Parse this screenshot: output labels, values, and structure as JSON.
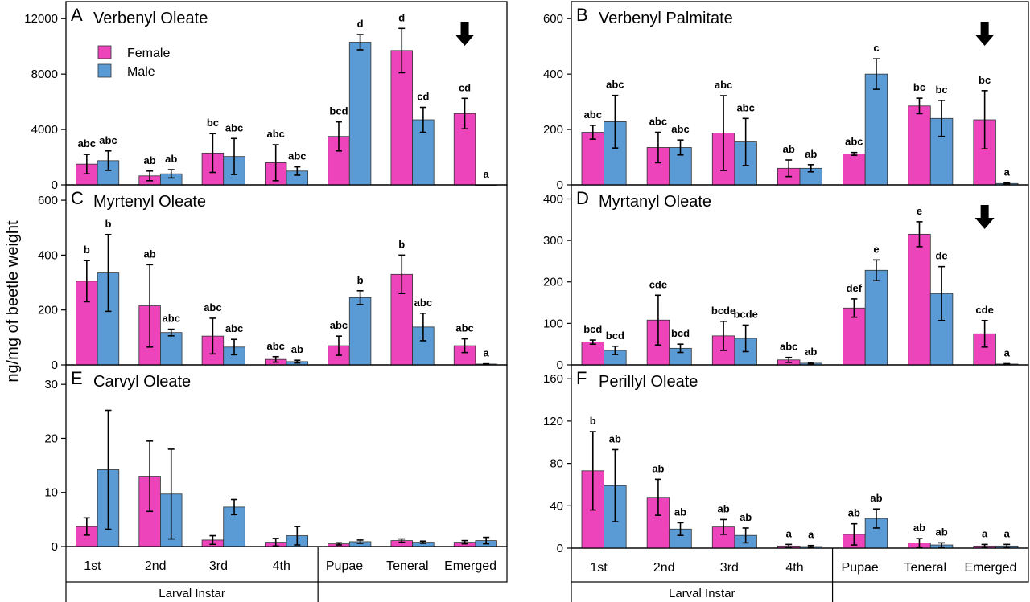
{
  "figure": {
    "ylabel": "ng/mg of beetle weight",
    "categories": [
      "1st",
      "2nd",
      "3rd",
      "4th",
      "Pupae",
      "Teneral",
      "Emerged"
    ],
    "group_label": "Larval Instar",
    "legend": {
      "female": "Female",
      "male": "Male"
    },
    "colors": {
      "female": "#ee44bb",
      "male": "#5b9bd5"
    }
  },
  "chart_data": [
    {
      "type": "bar",
      "letter": "A",
      "title": "Verbenyl Oleate",
      "ylim": [
        0,
        13000
      ],
      "yticks": [
        0,
        4000,
        8000,
        12000
      ],
      "ytick_labels": [
        "0",
        "4000",
        "8000",
        "12000"
      ],
      "categories": [
        "1st",
        "2nd",
        "3rd",
        "4th",
        "Pupae",
        "Teneral",
        "Emerged"
      ],
      "series": [
        {
          "name": "Female",
          "values": [
            1500,
            650,
            2300,
            1600,
            3500,
            9700,
            5150
          ],
          "errors": [
            700,
            350,
            1400,
            1300,
            1050,
            1600,
            1100
          ],
          "sig": [
            "abc",
            "ab",
            "bc",
            "abc",
            "bcd",
            "d",
            "cd"
          ]
        },
        {
          "name": "Male",
          "values": [
            1750,
            800,
            2050,
            1000,
            10300,
            4700,
            0
          ],
          "errors": [
            700,
            300,
            1300,
            300,
            550,
            900,
            0
          ],
          "sig": [
            "abc",
            "ab",
            "abc",
            "abc",
            "d",
            "cd",
            "a"
          ]
        }
      ],
      "arrow_category": "Emerged",
      "legend": "top-left"
    },
    {
      "type": "bar",
      "letter": "B",
      "title": "Verbenyl Palmitate",
      "ylim": [
        0,
        650
      ],
      "yticks": [
        0,
        200,
        400,
        600
      ],
      "ytick_labels": [
        "0",
        "200",
        "400",
        "600"
      ],
      "categories": [
        "1st",
        "2nd",
        "3rd",
        "4th",
        "Pupae",
        "Teneral",
        "Emerged"
      ],
      "series": [
        {
          "name": "Female",
          "values": [
            190,
            135,
            187,
            60,
            112,
            285,
            235
          ],
          "errors": [
            25,
            55,
            135,
            30,
            5,
            28,
            105
          ],
          "sig": [
            "abc",
            "abc",
            "abc",
            "ab",
            "abc",
            "bc",
            "bc"
          ]
        },
        {
          "name": "Male",
          "values": [
            228,
            135,
            155,
            60,
            400,
            240,
            5
          ],
          "errors": [
            95,
            27,
            85,
            13,
            55,
            65,
            2
          ],
          "sig": [
            "abc",
            "abc",
            "abc",
            "ab",
            "c",
            "bc",
            "a"
          ]
        }
      ],
      "arrow_category": "Emerged"
    },
    {
      "type": "bar",
      "letter": "C",
      "title": "Myrtenyl Oleate",
      "ylim": [
        0,
        650
      ],
      "yticks": [
        0,
        200,
        400,
        600
      ],
      "ytick_labels": [
        "0",
        "200",
        "400",
        "600"
      ],
      "categories": [
        "1st",
        "2nd",
        "3rd",
        "4th",
        "Pupae",
        "Teneral",
        "Emerged"
      ],
      "series": [
        {
          "name": "Female",
          "values": [
            305,
            215,
            105,
            20,
            70,
            330,
            70
          ],
          "errors": [
            75,
            150,
            65,
            10,
            35,
            70,
            25
          ],
          "sig": [
            "b",
            "ab",
            "abc",
            "abc",
            "abc",
            "b",
            "abc"
          ]
        },
        {
          "name": "Male",
          "values": [
            335,
            118,
            65,
            12,
            245,
            138,
            3
          ],
          "errors": [
            140,
            12,
            28,
            5,
            25,
            50,
            1
          ],
          "sig": [
            "b",
            "abc",
            "abc",
            "ab",
            "b",
            "abc",
            "a"
          ]
        }
      ]
    },
    {
      "type": "bar",
      "letter": "D",
      "title": "Myrtanyl Oleate",
      "ylim": [
        0,
        430
      ],
      "yticks": [
        0,
        100,
        200,
        300,
        400
      ],
      "ytick_labels": [
        "0",
        "100",
        "200",
        "300",
        "400"
      ],
      "categories": [
        "1st",
        "2nd",
        "3rd",
        "4th",
        "Pupae",
        "Teneral",
        "Emerged"
      ],
      "series": [
        {
          "name": "Female",
          "values": [
            55,
            108,
            70,
            12,
            137,
            315,
            75
          ],
          "errors": [
            5,
            60,
            35,
            6,
            22,
            30,
            32
          ],
          "sig": [
            "bcd",
            "cde",
            "bcde",
            "abc",
            "def",
            "e",
            "cde"
          ]
        },
        {
          "name": "Male",
          "values": [
            35,
            40,
            64,
            4,
            228,
            172,
            2
          ],
          "errors": [
            10,
            10,
            32,
            2,
            25,
            65,
            1
          ],
          "sig": [
            "bcd",
            "bcd",
            "bcde",
            "ab",
            "e",
            "de",
            "a"
          ]
        }
      ],
      "arrow_category": "Emerged"
    },
    {
      "type": "bar",
      "letter": "E",
      "title": "Carvyl Oleate",
      "ylim": [
        0,
        33
      ],
      "yticks": [
        0,
        10,
        20,
        30
      ],
      "ytick_labels": [
        "0",
        "10",
        "20",
        "30"
      ],
      "categories": [
        "1st",
        "2nd",
        "3rd",
        "4th",
        "Pupae",
        "Teneral",
        "Emerged"
      ],
      "series": [
        {
          "name": "Female",
          "values": [
            3.7,
            13,
            1.2,
            0.8,
            0.5,
            1.1,
            0.8
          ],
          "errors": [
            1.6,
            6.5,
            0.8,
            0.7,
            0.2,
            0.3,
            0.3
          ],
          "sig": [
            "",
            "",
            "",
            "",
            "",
            "",
            ""
          ]
        },
        {
          "name": "Male",
          "values": [
            14.2,
            9.7,
            7.3,
            2.0,
            0.9,
            0.8,
            1.1
          ],
          "errors": [
            11,
            8.3,
            1.4,
            1.7,
            0.3,
            0.2,
            0.6
          ],
          "sig": [
            "",
            "",
            "",
            "",
            "",
            "",
            ""
          ]
        }
      ]
    },
    {
      "type": "bar",
      "letter": "F",
      "title": "Perillyl Oleate",
      "ylim": [
        0,
        170
      ],
      "yticks": [
        0,
        40,
        80,
        120,
        160
      ],
      "ytick_labels": [
        "0",
        "40",
        "80",
        "120",
        "160"
      ],
      "categories": [
        "1st",
        "2nd",
        "3rd",
        "4th",
        "Pupae",
        "Teneral",
        "Emerged"
      ],
      "series": [
        {
          "name": "Female",
          "values": [
            73,
            48,
            20,
            2,
            13,
            5,
            2
          ],
          "errors": [
            37,
            17,
            7,
            1.5,
            10,
            4,
            1.5
          ],
          "sig": [
            "b",
            "ab",
            "ab",
            "a",
            "ab",
            "ab",
            "a"
          ]
        },
        {
          "name": "Male",
          "values": [
            59,
            18,
            12,
            1.5,
            28,
            3,
            2
          ],
          "errors": [
            34,
            6,
            7,
            1,
            9,
            2,
            1.5
          ],
          "sig": [
            "ab",
            "ab",
            "ab",
            "a",
            "ab",
            "ab",
            "a"
          ]
        }
      ]
    }
  ]
}
